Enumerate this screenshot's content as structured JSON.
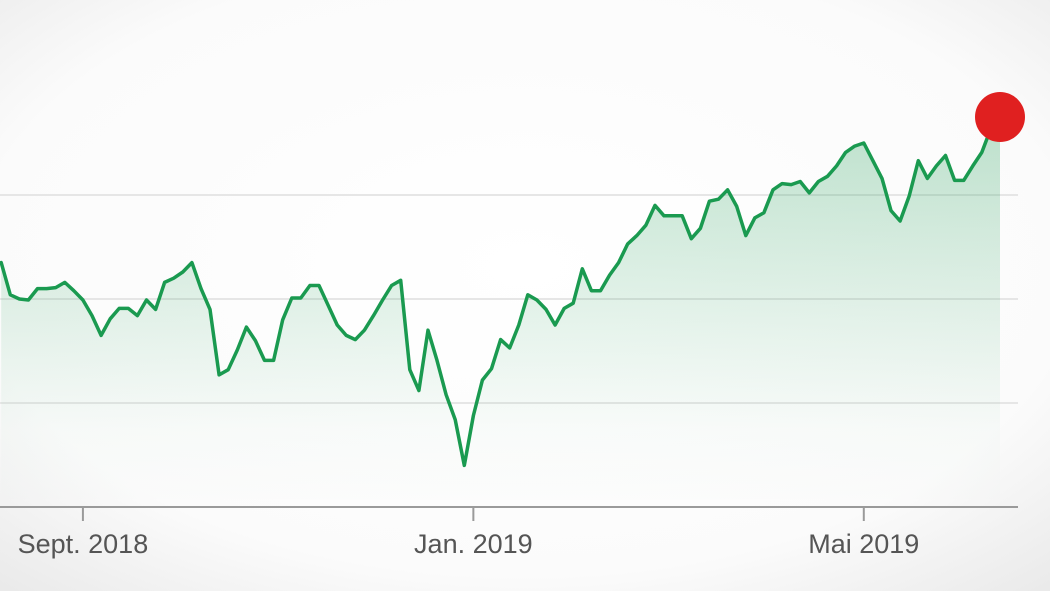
{
  "chart_data": {
    "type": "line",
    "categories": [
      null,
      null,
      null,
      null,
      null,
      null,
      null,
      null,
      null,
      "Sept. 2018",
      null,
      null,
      null,
      null,
      null,
      null,
      null,
      null,
      null,
      null,
      null,
      null,
      null,
      null,
      null,
      null,
      null,
      null,
      null,
      null,
      null,
      null,
      null,
      null,
      null,
      null,
      null,
      null,
      null,
      null,
      null,
      null,
      null,
      null,
      null,
      null,
      null,
      null,
      null,
      null,
      null,
      null,
      "Jan. 2019",
      null,
      null,
      null,
      null,
      null,
      null,
      null,
      null,
      null,
      null,
      null,
      null,
      null,
      null,
      null,
      null,
      null,
      null,
      null,
      null,
      null,
      null,
      null,
      null,
      null,
      null,
      null,
      null,
      null,
      null,
      null,
      null,
      null,
      null,
      null,
      null,
      null,
      null,
      null,
      null,
      null,
      null,
      "Mai 2019",
      null,
      null,
      null,
      null,
      null,
      null,
      null,
      null,
      null,
      null,
      null,
      null,
      null,
      null,
      null
    ],
    "series": [
      {
        "color": "#1a9a50",
        "values": [
          235,
          204,
          200,
          199,
          210,
          210,
          211,
          216,
          208,
          199,
          184,
          165,
          181,
          191,
          191,
          184,
          199,
          190,
          216,
          220,
          226,
          235,
          210,
          190,
          127,
          132,
          151,
          173,
          160,
          141,
          141,
          180,
          201,
          201,
          213,
          213,
          194,
          175,
          165,
          161,
          170,
          184,
          199,
          213,
          218,
          132,
          112,
          170,
          141,
          108,
          84,
          40,
          88,
          122,
          133,
          161,
          153,
          175,
          204,
          199,
          190,
          175,
          191,
          196,
          229,
          208,
          208,
          223,
          235,
          253,
          261,
          271,
          290,
          280,
          280,
          280,
          258,
          268,
          294,
          296,
          305,
          289,
          261,
          278,
          283,
          305,
          311,
          310,
          313,
          302,
          313,
          318,
          328,
          341,
          347,
          350,
          333,
          316,
          285,
          275,
          299,
          333,
          316,
          328,
          338,
          314,
          314,
          328,
          341,
          364,
          375
        ]
      }
    ],
    "end_marker_color": "#e02020",
    "ylim": [
      0,
      400
    ],
    "yticks": [
      0,
      100,
      200,
      300
    ],
    "ytick_labels": false,
    "grid": true
  }
}
